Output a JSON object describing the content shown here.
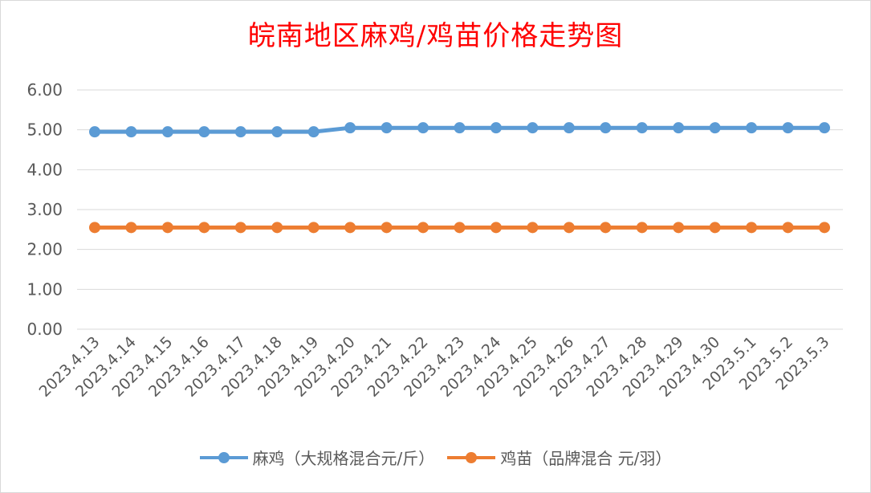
{
  "chart_data": {
    "type": "line",
    "title": "皖南地区麻鸡/鸡苗价格走势图",
    "categories": [
      "2023.4.13",
      "2023.4.14",
      "2023.4.15",
      "2023.4.16",
      "2023.4.17",
      "2023.4.18",
      "2023.4.19",
      "2023.4.20",
      "2023.4.21",
      "2023.4.22",
      "2023.4.23",
      "2023.4.24",
      "2023.4.25",
      "2023.4.26",
      "2023.4.27",
      "2023.4.28",
      "2023.4.29",
      "2023.4.30",
      "2023.5.1",
      "2023.5.2",
      "2023.5.3"
    ],
    "yticks": [
      "0.00",
      "1.00",
      "2.00",
      "3.00",
      "4.00",
      "5.00",
      "6.00"
    ],
    "ylim": [
      0,
      6
    ],
    "grid": true,
    "legend_position": "bottom",
    "series": [
      {
        "name": "麻鸡（大规格混合元/斤）",
        "color": "#5b9bd5",
        "values": [
          4.95,
          4.95,
          4.95,
          4.95,
          4.95,
          4.95,
          4.95,
          5.05,
          5.05,
          5.05,
          5.05,
          5.05,
          5.05,
          5.05,
          5.05,
          5.05,
          5.05,
          5.05,
          5.05,
          5.05,
          5.05
        ]
      },
      {
        "name": "鸡苗（品牌混合 元/羽）",
        "color": "#ed7d31",
        "values": [
          2.55,
          2.55,
          2.55,
          2.55,
          2.55,
          2.55,
          2.55,
          2.55,
          2.55,
          2.55,
          2.55,
          2.55,
          2.55,
          2.55,
          2.55,
          2.55,
          2.55,
          2.55,
          2.55,
          2.55,
          2.55
        ]
      }
    ]
  }
}
